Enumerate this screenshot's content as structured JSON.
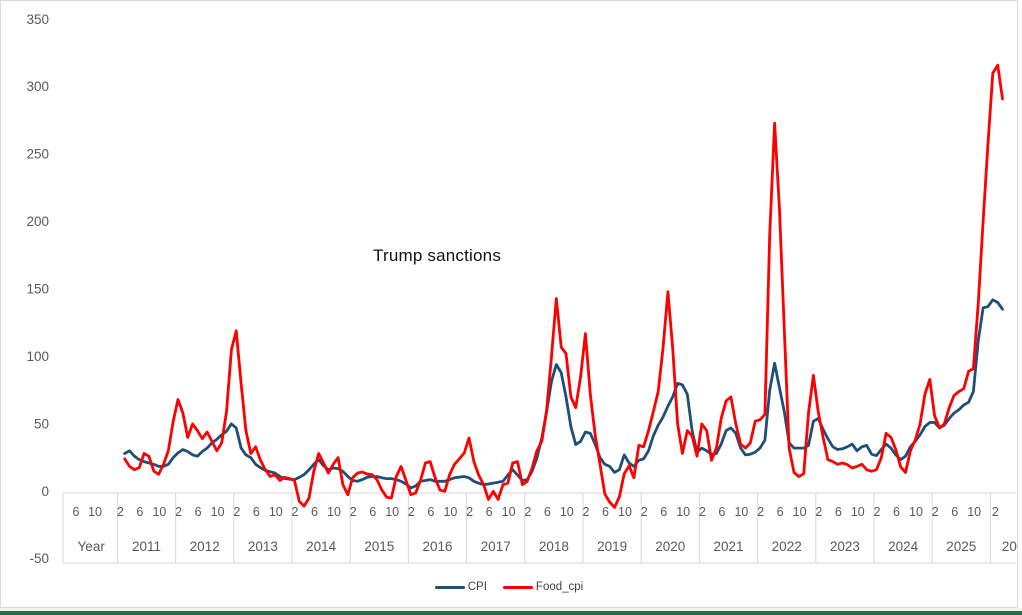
{
  "page": {
    "background": "#ffffff",
    "frame_border_color": "#d9d9d9",
    "axis_text_color": "#595959",
    "bottom_bar_color": "#2a6b4a"
  },
  "chart_data": {
    "type": "line",
    "annotation": "Trump sanctions",
    "x_label": "Year",
    "x_unit": "month",
    "x_start": "2011-02",
    "x_end": "2026-03",
    "x_years": [
      "2011",
      "2012",
      "2013",
      "2014",
      "2015",
      "2016",
      "2017",
      "2018",
      "2019",
      "2020",
      "2021",
      "2022",
      "2023",
      "2024",
      "2025"
    ],
    "x_year_clipped": "20",
    "x_month_ticks": [
      "2",
      "6",
      "10"
    ],
    "x_leading_month_ticks": [
      "6",
      "10"
    ],
    "y_ticks": [
      350,
      300,
      250,
      200,
      150,
      100,
      50,
      0,
      -50
    ],
    "ylim": [
      -50,
      350
    ],
    "grid": false,
    "legend_position": "bottom-center",
    "series": [
      {
        "name": "CPI",
        "color": "#1f4e79",
        "start_month": "2011-02",
        "values": [
          28,
          30,
          26,
          23.5,
          22,
          21,
          20,
          18.5,
          18.5,
          20,
          25,
          28.5,
          31,
          29.5,
          27,
          26,
          29.5,
          32,
          36,
          38.5,
          42,
          44.5,
          50,
          47,
          32,
          27,
          25,
          20,
          17.5,
          15.5,
          14.5,
          13.5,
          11,
          9.5,
          9,
          8.7,
          10.4,
          12.4,
          16,
          20,
          23.5,
          19,
          16,
          17.3,
          16.8,
          14.8,
          11,
          8,
          7.4,
          8.7,
          10.4,
          11,
          11,
          10,
          9.4,
          9.4,
          8.7,
          7.4,
          5.4,
          2.5,
          4,
          7.4,
          8,
          8.7,
          7.4,
          7.4,
          7.4,
          8.7,
          10,
          10.5,
          11,
          10,
          7.4,
          6,
          5,
          5.4,
          6.1,
          6.7,
          7.4,
          12,
          16,
          12,
          8,
          8.7,
          14.8,
          24.7,
          39.5,
          59,
          81.5,
          94,
          88,
          70,
          48,
          34.6,
          37,
          44,
          43,
          35,
          25,
          20,
          18.5,
          14,
          16,
          27,
          21,
          18.5,
          23,
          24,
          30,
          41,
          49,
          55,
          63,
          70,
          80,
          79,
          72,
          45,
          29,
          32,
          30,
          27.5,
          28,
          35,
          45,
          47,
          43,
          32,
          27,
          27.5,
          29,
          32,
          38,
          75,
          95,
          77,
          59,
          36,
          32,
          32,
          32,
          34,
          52,
          54,
          46,
          39,
          33,
          31,
          31.5,
          33,
          35,
          30,
          33,
          34,
          27.5,
          26.5,
          31,
          35,
          32,
          27,
          23.5,
          26,
          33,
          37,
          42,
          48,
          51,
          51,
          47,
          49,
          54,
          58,
          60.5,
          64,
          66,
          74,
          112,
          136,
          137,
          142,
          140,
          135
        ]
      },
      {
        "name": "Food_cpi",
        "color": "#fe0000",
        "start_month": "2011-02",
        "values": [
          24,
          18.5,
          16,
          17.5,
          28,
          26,
          15,
          12.5,
          20,
          30,
          52,
          68,
          58,
          40,
          50,
          45,
          39,
          44,
          37,
          30,
          36,
          59,
          105,
          119,
          80,
          45,
          28,
          33,
          23,
          16,
          11,
          12.4,
          8,
          10.4,
          9.4,
          8,
          -7.4,
          -11,
          -5,
          15,
          28,
          21,
          13.5,
          20,
          25,
          5,
          -2.5,
          10,
          13.5,
          14.3,
          12.8,
          12.4,
          8.7,
          1.2,
          -4.4,
          -5,
          11,
          18.5,
          8,
          -2.5,
          -1.2,
          8,
          21,
          22,
          10,
          1,
          0,
          12.4,
          20,
          24,
          28.4,
          39.5,
          22,
          12,
          5,
          -6,
          0,
          -6,
          5,
          6,
          21,
          22,
          5,
          7.4,
          17.3,
          30,
          37,
          60,
          100,
          143,
          107,
          102,
          70,
          62,
          85,
          117,
          72,
          42,
          20,
          -2,
          -8,
          -12,
          -4,
          13,
          19,
          10,
          34,
          33,
          45,
          59,
          74,
          106,
          148,
          106,
          50,
          28,
          45,
          41,
          26,
          50,
          45,
          23,
          32,
          54,
          67,
          70,
          50,
          35,
          32,
          36,
          52,
          53,
          57,
          190,
          273,
          210,
          120,
          32,
          14,
          11,
          13,
          58,
          86,
          59,
          40,
          23.5,
          22,
          20,
          21,
          19.8,
          17.3,
          18.5,
          20,
          16,
          14.8,
          16,
          25,
          43,
          40,
          31,
          18,
          14,
          30,
          38,
          50,
          72,
          83,
          56,
          47,
          50,
          62,
          71,
          74,
          76,
          89,
          91,
          140,
          200,
          258,
          310,
          316,
          291
        ]
      }
    ]
  },
  "legend": {
    "items": [
      {
        "label": "CPI",
        "color": "#1f4e79"
      },
      {
        "label": "Food_cpi",
        "color": "#fe0000"
      }
    ]
  }
}
